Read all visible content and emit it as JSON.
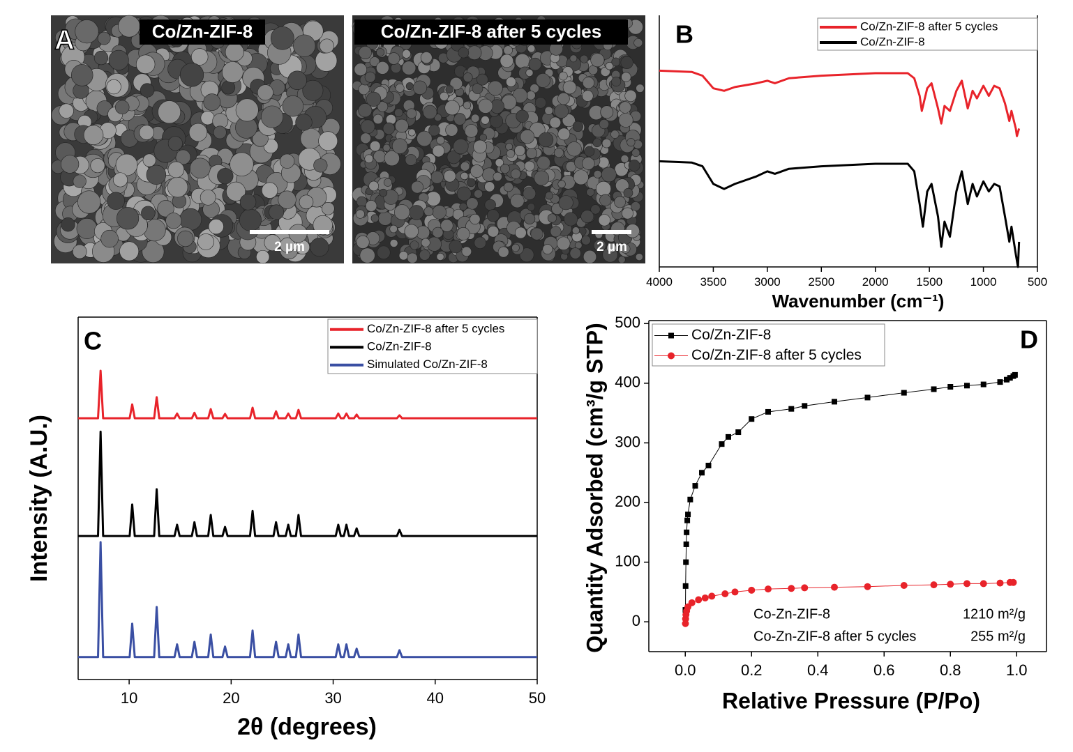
{
  "panel_a": {
    "label": "A",
    "images": [
      {
        "caption": "Co/Zn-ZIF-8",
        "scale_bar": "2 µm"
      },
      {
        "caption": "Co/Zn-ZIF-8 after 5 cycles",
        "scale_bar": "2 µm"
      }
    ]
  },
  "chart_data": [
    {
      "type": "line",
      "label": "B",
      "x_label": "Wavenumber (cm⁻¹)",
      "legend": "upper right",
      "xlim": [
        4000,
        500
      ],
      "xticks": [
        4000,
        3500,
        3000,
        2500,
        2000,
        1500,
        1000,
        500
      ],
      "ylim": [
        0,
        100
      ],
      "series": [
        {
          "name": "Co/Zn-ZIF-8 after 5 cycles",
          "color": "#e8232a",
          "x": [
            4000,
            3700,
            3600,
            3500,
            3400,
            3300,
            3100,
            3000,
            2930,
            2800,
            2500,
            2000,
            1700,
            1640,
            1590,
            1570,
            1520,
            1480,
            1420,
            1390,
            1360,
            1310,
            1250,
            1200,
            1145,
            1100,
            1060,
            1000,
            950,
            900,
            850,
            800,
            760,
            740,
            700,
            690,
            670
          ],
          "values": [
            78,
            77.5,
            76,
            71,
            70,
            71.5,
            73,
            74,
            73,
            75,
            76,
            77,
            77,
            75,
            68,
            62,
            71,
            73,
            63,
            57,
            64,
            62,
            70,
            74,
            63,
            70,
            67,
            72,
            68,
            72,
            71,
            65,
            58,
            62,
            55,
            52,
            55
          ]
        },
        {
          "name": "Co/Zn-ZIF-8",
          "color": "#000000",
          "x": [
            4000,
            3700,
            3600,
            3500,
            3400,
            3300,
            3100,
            3000,
            2930,
            2800,
            2500,
            2000,
            1700,
            1640,
            1590,
            1560,
            1520,
            1480,
            1420,
            1390,
            1360,
            1310,
            1250,
            1200,
            1145,
            1100,
            1060,
            1000,
            950,
            900,
            850,
            800,
            760,
            740,
            700,
            680,
            670
          ],
          "values": [
            42,
            41.5,
            40,
            33,
            31,
            33,
            36,
            38,
            37,
            39,
            40,
            41,
            41,
            38,
            25,
            16,
            30,
            33,
            20,
            8,
            18,
            12,
            30,
            38,
            25,
            33,
            28,
            34,
            30,
            33,
            32,
            20,
            10,
            16,
            5,
            0,
            10
          ]
        }
      ]
    },
    {
      "type": "line",
      "label": "C",
      "x_label": "2θ (degrees)",
      "y_label": "Intensity (A.U.)",
      "legend": "upper right",
      "xlim": [
        5,
        50
      ],
      "xticks": [
        10,
        20,
        30,
        40,
        50
      ],
      "ylim": [
        0,
        100
      ],
      "x": [
        5,
        6.95,
        7.2,
        7.45,
        10.05,
        10.3,
        10.55,
        12.45,
        12.7,
        12.95,
        14.45,
        14.7,
        14.95,
        16.15,
        16.4,
        16.65,
        17.75,
        18.0,
        18.25,
        19.15,
        19.4,
        19.65,
        21.85,
        22.1,
        22.35,
        24.15,
        24.4,
        24.65,
        25.35,
        25.6,
        25.85,
        26.35,
        26.6,
        26.85,
        30.25,
        30.5,
        30.75,
        31.05,
        31.3,
        31.55,
        32.05,
        32.3,
        32.55,
        36.25,
        36.5,
        36.75,
        50
      ],
      "series": [
        {
          "name": "Co/Zn-ZIF-8 after 5 cycles",
          "color": "#e8232a",
          "values": [
            72.1,
            72.1,
            85.2,
            72.1,
            72.1,
            75.9,
            72.1,
            72.1,
            77.9,
            72.1,
            72.1,
            73.4,
            72.1,
            72.1,
            73.6,
            72.1,
            72.1,
            74.6,
            72.1,
            72.1,
            73.3,
            72.1,
            72.1,
            75.0,
            72.1,
            72.1,
            74.0,
            72.1,
            72.1,
            73.4,
            72.1,
            72.1,
            74.4,
            72.1,
            72.1,
            73.4,
            72.1,
            72.1,
            73.4,
            72.1,
            72.1,
            73.1,
            72.1,
            72.1,
            72.9,
            72.1,
            72.1
          ]
        },
        {
          "name": "Co/Zn-ZIF-8",
          "color": "#000000",
          "values": [
            39.6,
            39.6,
            68.4,
            39.6,
            39.6,
            48.3,
            39.6,
            39.6,
            52.5,
            39.6,
            39.6,
            42.7,
            39.6,
            39.6,
            43.4,
            39.6,
            39.6,
            45.4,
            39.6,
            39.6,
            42.1,
            39.6,
            39.6,
            46.5,
            39.6,
            39.6,
            43.4,
            39.6,
            39.6,
            42.7,
            39.6,
            39.6,
            45.4,
            39.6,
            39.6,
            42.7,
            39.6,
            39.6,
            42.7,
            39.6,
            39.6,
            41.7,
            39.6,
            39.6,
            41.3,
            39.6,
            39.6
          ]
        },
        {
          "name": "Simulated Co/Zn-ZIF-8",
          "color": "#3a4fa3",
          "values": [
            6.2,
            6.2,
            37.9,
            6.2,
            6.2,
            15.4,
            6.2,
            6.2,
            20.0,
            6.2,
            6.2,
            9.7,
            6.2,
            6.2,
            10.4,
            6.2,
            6.2,
            12.4,
            6.2,
            6.2,
            9.1,
            6.2,
            6.2,
            13.5,
            6.2,
            6.2,
            10.4,
            6.2,
            6.2,
            9.7,
            6.2,
            6.2,
            12.4,
            6.2,
            6.2,
            9.7,
            6.2,
            6.2,
            9.7,
            6.2,
            6.2,
            8.5,
            6.2,
            6.2,
            8.1,
            6.2,
            6.2
          ]
        }
      ]
    },
    {
      "type": "line",
      "label": "D",
      "x_label": "Relative Pressure (P/Po)",
      "y_label": "Quantity Adsorbed (cm³/g STP)",
      "legend": "upper left",
      "markers": true,
      "xlim": [
        -0.11,
        1.09
      ],
      "xticks": [
        {
          "value": 0,
          "label": "0.0"
        },
        0.2,
        0.4,
        0.6,
        0.8,
        {
          "value": 1,
          "label": "1.0"
        }
      ],
      "ylim": [
        -50,
        505
      ],
      "yticks": [
        0,
        100,
        200,
        300,
        400,
        500
      ],
      "annotations": [
        "Co-Zn-ZIF-8",
        "1210 m²/g",
        "Co-Zn-ZIF-8 after 5 cycles",
        "255  m²/g"
      ],
      "series": [
        {
          "name": "Co/Zn-ZIF-8",
          "color": "#000000",
          "marker": "square",
          "x": [
            0.0005,
            0.001,
            0.002,
            0.003,
            0.004,
            0.006,
            0.008,
            0.015,
            0.03,
            0.05,
            0.07,
            0.11,
            0.13,
            0.16,
            0.2,
            0.25,
            0.32,
            0.36,
            0.45,
            0.55,
            0.66,
            0.75,
            0.8,
            0.85,
            0.9,
            0.95,
            0.97,
            0.98,
            0.99,
            0.995
          ],
          "values": [
            20,
            60,
            100,
            130,
            150,
            170,
            180,
            205,
            228,
            250,
            262,
            298,
            310,
            318,
            340,
            352,
            357,
            362,
            369,
            376,
            384,
            390,
            394,
            396,
            398,
            402,
            406,
            409,
            412,
            414
          ]
        },
        {
          "name": "Co/Zn-ZIF-8 after 5 cycles",
          "color": "#e8232a",
          "marker": "circle",
          "x": [
            0.0005,
            0.001,
            0.002,
            0.004,
            0.008,
            0.02,
            0.04,
            0.06,
            0.08,
            0.12,
            0.15,
            0.2,
            0.25,
            0.32,
            0.36,
            0.45,
            0.55,
            0.66,
            0.75,
            0.8,
            0.85,
            0.9,
            0.95,
            0.98,
            0.99
          ],
          "values": [
            -3,
            5,
            12,
            18,
            25,
            32,
            37,
            40,
            43,
            47,
            50,
            53,
            55,
            56,
            57,
            58,
            59,
            61,
            62,
            63,
            64,
            64,
            65,
            66,
            66
          ]
        }
      ]
    }
  ]
}
